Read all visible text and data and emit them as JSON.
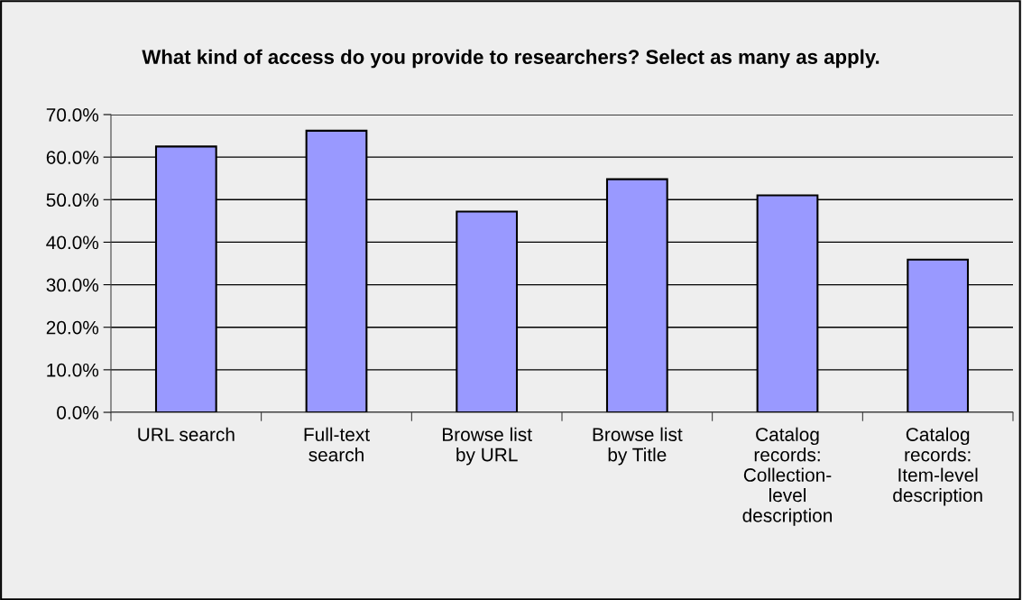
{
  "chart_data": {
    "type": "bar",
    "title": "What kind of access do you provide to researchers? Select as many as apply.",
    "categories": [
      "URL search",
      "Full-text\nsearch",
      "Browse list\nby URL",
      "Browse list\nby Title",
      "Catalog\nrecords:\nCollection-\nlevel\ndescription",
      "Catalog\nrecords:\nItem-level\ndescription"
    ],
    "values": [
      62.5,
      66.2,
      47.2,
      54.8,
      51.0,
      35.9
    ],
    "color": "#9999ff",
    "ylim": [
      0,
      70
    ],
    "yticks": [
      {
        "value": 0,
        "label": "0.0%"
      },
      {
        "value": 10,
        "label": "10.0%"
      },
      {
        "value": 20,
        "label": "20.0%"
      },
      {
        "value": 30,
        "label": "30.0%"
      },
      {
        "value": 40,
        "label": "40.0%"
      },
      {
        "value": 50,
        "label": "50.0%"
      },
      {
        "value": 60,
        "label": "60.0%"
      },
      {
        "value": 70,
        "label": "70.0%"
      }
    ],
    "grid": "y"
  }
}
